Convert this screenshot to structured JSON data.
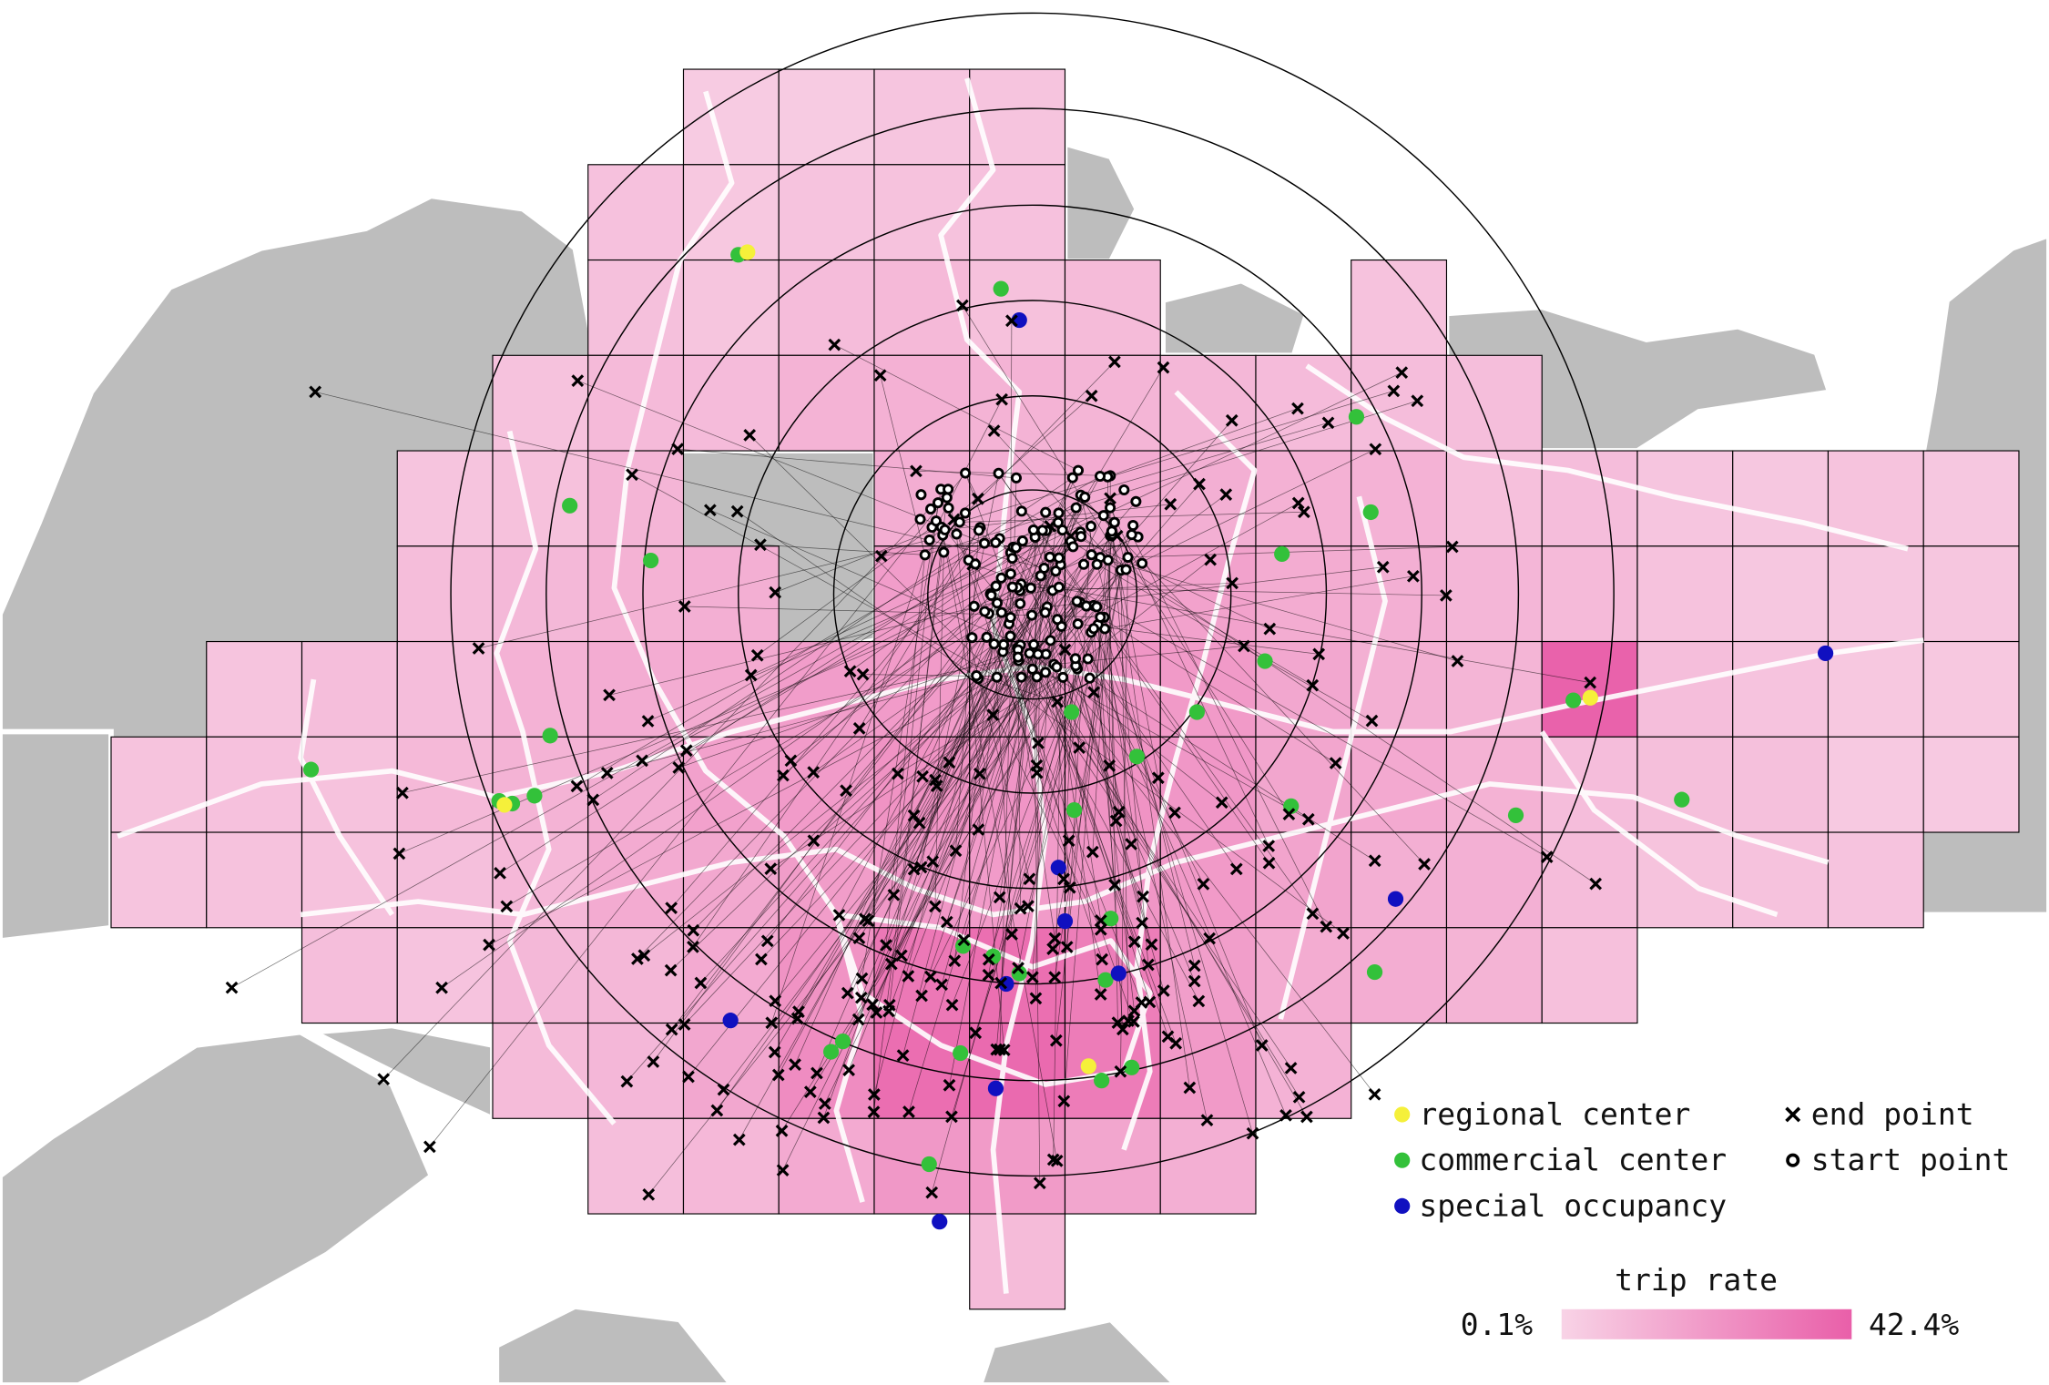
{
  "legend": {
    "items": [
      {
        "label": "regional center"
      },
      {
        "label": "commercial center"
      },
      {
        "label": "special occupancy"
      },
      {
        "label": "end point"
      },
      {
        "label": "start point"
      }
    ]
  },
  "colorbar": {
    "title": "trip rate",
    "min_label": "0.1%",
    "max_label": "42.4%"
  }
}
